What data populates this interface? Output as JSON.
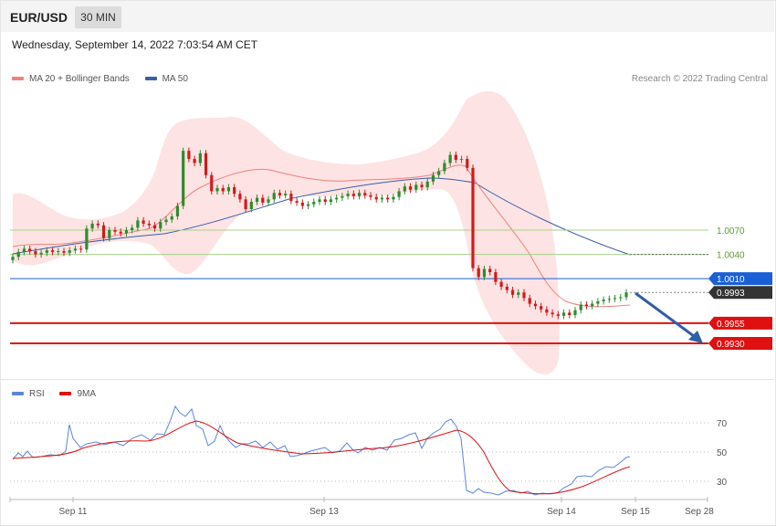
{
  "header": {
    "symbol": "EUR/USD",
    "timeframe": "30 MIN",
    "datetime": "Wednesday, September 14, 2022 7:03:54 AM CET"
  },
  "legend": {
    "ma20": "MA 20 + Bollinger Bands",
    "ma50": "MA 50",
    "rsi": "RSI",
    "rsi_ma": "9MA"
  },
  "research": "Research © 2022 Trading Central",
  "colors": {
    "bull": "#2e8b2e",
    "bear": "#d11a1a",
    "ma20": "#f08080",
    "band_fill": "#fde3e3",
    "ma50": "#3a5fa8",
    "resistance_green": "#a6d08a",
    "pivot_blue": "#1a5fd6",
    "support_red": "#e01010",
    "current": "#333333",
    "rsi_line": "#5b85d9",
    "rsi_ma_line": "#e01010",
    "arrow": "#2f5fa8"
  },
  "chart_data": [
    {
      "type": "candlestick",
      "x_ticks": [
        "Sep 11",
        "Sep 13",
        "Sep 14",
        "Sep 15",
        "Sep 28"
      ],
      "ylim": [
        0.9915,
        1.0115
      ],
      "levels": [
        {
          "value": 1.007,
          "label": "1.0070",
          "kind": "resistance"
        },
        {
          "value": 1.004,
          "label": "1.0040",
          "kind": "resistance"
        },
        {
          "value": 1.001,
          "label": "1.0010",
          "kind": "pivot"
        },
        {
          "value": 0.9993,
          "label": "0.9993",
          "kind": "current"
        },
        {
          "value": 0.9955,
          "label": "0.9955",
          "kind": "support"
        },
        {
          "value": 0.993,
          "label": "0.9930",
          "kind": "support"
        }
      ],
      "close": [
        1.0037,
        1.0043,
        1.0047,
        1.0044,
        1.004,
        1.0042,
        1.0045,
        1.0043,
        1.0044,
        1.0042,
        1.0045,
        1.0047,
        1.0046,
        1.0072,
        1.0078,
        1.0076,
        1.006,
        1.007,
        1.0068,
        1.0066,
        1.007,
        1.0073,
        1.0082,
        1.0078,
        1.0076,
        1.0072,
        1.008,
        1.0083,
        1.0087,
        1.01,
        1.0168,
        1.0158,
        1.0153,
        1.0165,
        1.0138,
        1.0118,
        1.0122,
        1.0118,
        1.0123,
        1.0115,
        1.0108,
        1.0096,
        1.0105,
        1.011,
        1.0104,
        1.0108,
        1.0116,
        1.0113,
        1.0115,
        1.0106,
        1.0104,
        1.01,
        1.0102,
        1.0105,
        1.0108,
        1.0105,
        1.0108,
        1.011,
        1.0112,
        1.0115,
        1.0112,
        1.0116,
        1.0113,
        1.0111,
        1.0108,
        1.011,
        1.0108,
        1.0111,
        1.0118,
        1.0124,
        1.012,
        1.0126,
        1.0123,
        1.013,
        1.0138,
        1.0143,
        1.0153,
        1.0163,
        1.0157,
        1.0158,
        1.0147,
        1.0023,
        1.0012,
        1.0022,
        1.0018,
        1.0006,
        1.0,
        0.9996,
        0.999,
        0.9993,
        0.9986,
        0.9979,
        0.9976,
        0.9972,
        0.9968,
        0.9966,
        0.9964,
        0.9968,
        0.9965,
        0.9971,
        0.9978,
        0.9976,
        0.9979,
        0.9982,
        0.9984,
        0.9985,
        0.9986,
        0.9987,
        0.9993
      ]
    },
    {
      "type": "line",
      "name": "RSI",
      "yticks": [
        70,
        50,
        30
      ],
      "ylim": [
        20,
        85
      ]
    }
  ]
}
